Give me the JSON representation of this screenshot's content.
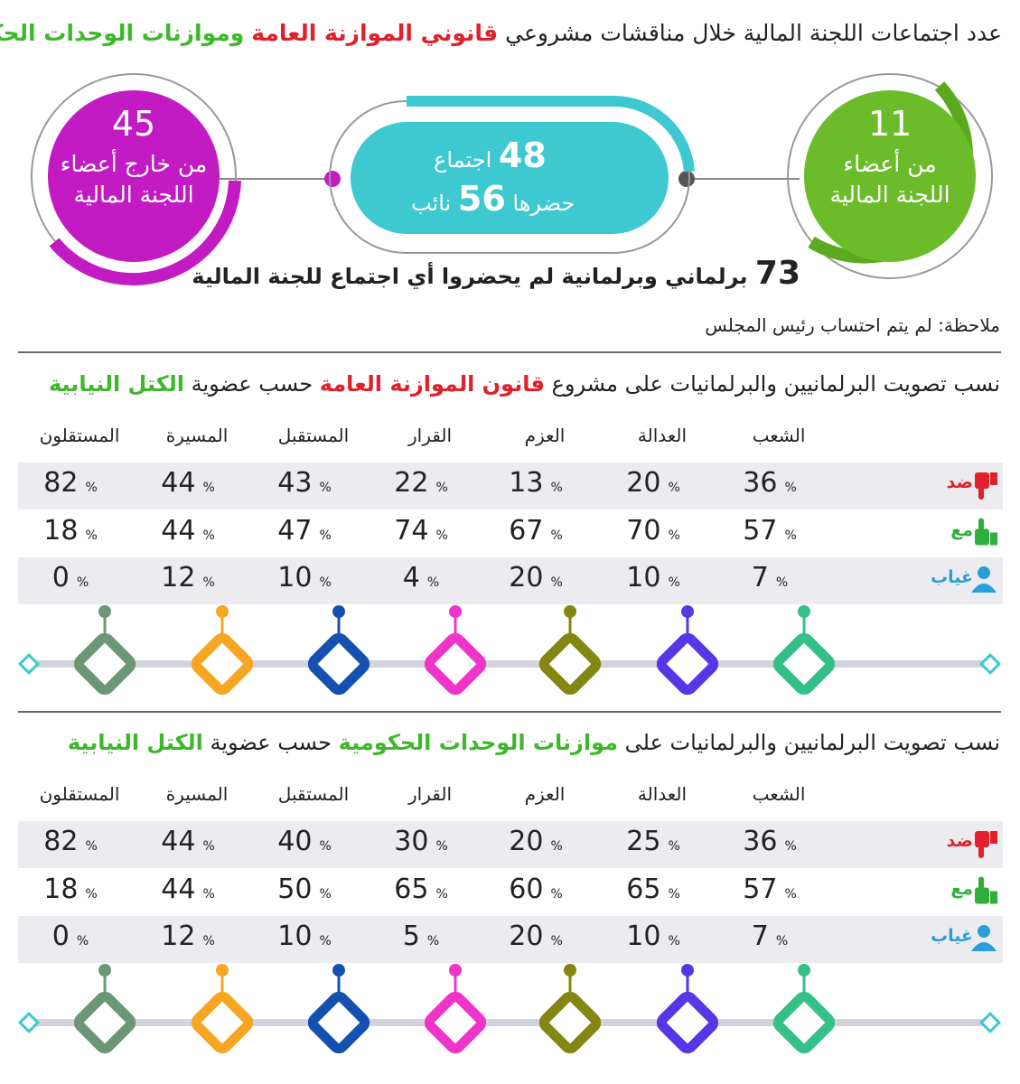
{
  "header": {
    "title": {
      "text": "عدد اجتماعات اللجنة المالية خلال مناقشات مشروعي",
      "highlight_red": "قانوني الموازنة العامة",
      "highlight_green": "وموازنات الوحدات الحكومية"
    }
  },
  "circles": {
    "outside_members": {
      "number": 45,
      "label": "من خارج أعضاء اللجنة المالية"
    },
    "meetings": {
      "number": 48,
      "unit": "اجتماع",
      "attended_prefix": "حضرها",
      "attendees": 56,
      "attendees_unit": "نائب"
    },
    "members": {
      "number": 11,
      "label": "من أعضاء اللجنة المالية"
    }
  },
  "summary": {
    "number": 73,
    "text": "برلماني وبرلمانية لم يحضروا أي اجتماع للجنة المالية"
  },
  "note": "ملاحظة: لم يتم احتساب رئيس المجلس",
  "percent_sign": "%",
  "row_labels": [
    "ضد",
    "مع",
    "غياب"
  ],
  "blocks": [
    "الشعب",
    "العدالة",
    "العزم",
    "القرار",
    "المستقبل",
    "المسيرة",
    "المستقلون"
  ],
  "sections": [
    {
      "title": {
        "prefix": "نسب تصويت البرلمانيين والبرلمانيات على مشروع",
        "subject": "قانون الموازنة العامة",
        "middle": "حسب عضوية",
        "suffix": "الكتل النيابية"
      },
      "rows": [
        [
          36,
          20,
          13,
          22,
          43,
          44,
          82
        ],
        [
          57,
          70,
          67,
          74,
          47,
          44,
          18
        ],
        [
          7,
          10,
          20,
          4,
          10,
          12,
          0
        ]
      ]
    },
    {
      "title": {
        "prefix": "نسب تصويت البرلمانيين والبرلمانيات على",
        "subject": "موازنات الوحدات الحكومية",
        "middle": "حسب عضوية",
        "suffix": "الكتل النيابية"
      },
      "rows": [
        [
          36,
          25,
          20,
          30,
          40,
          44,
          82
        ],
        [
          57,
          65,
          60,
          65,
          50,
          44,
          18
        ],
        [
          7,
          10,
          20,
          5,
          10,
          12,
          0
        ]
      ]
    }
  ]
}
